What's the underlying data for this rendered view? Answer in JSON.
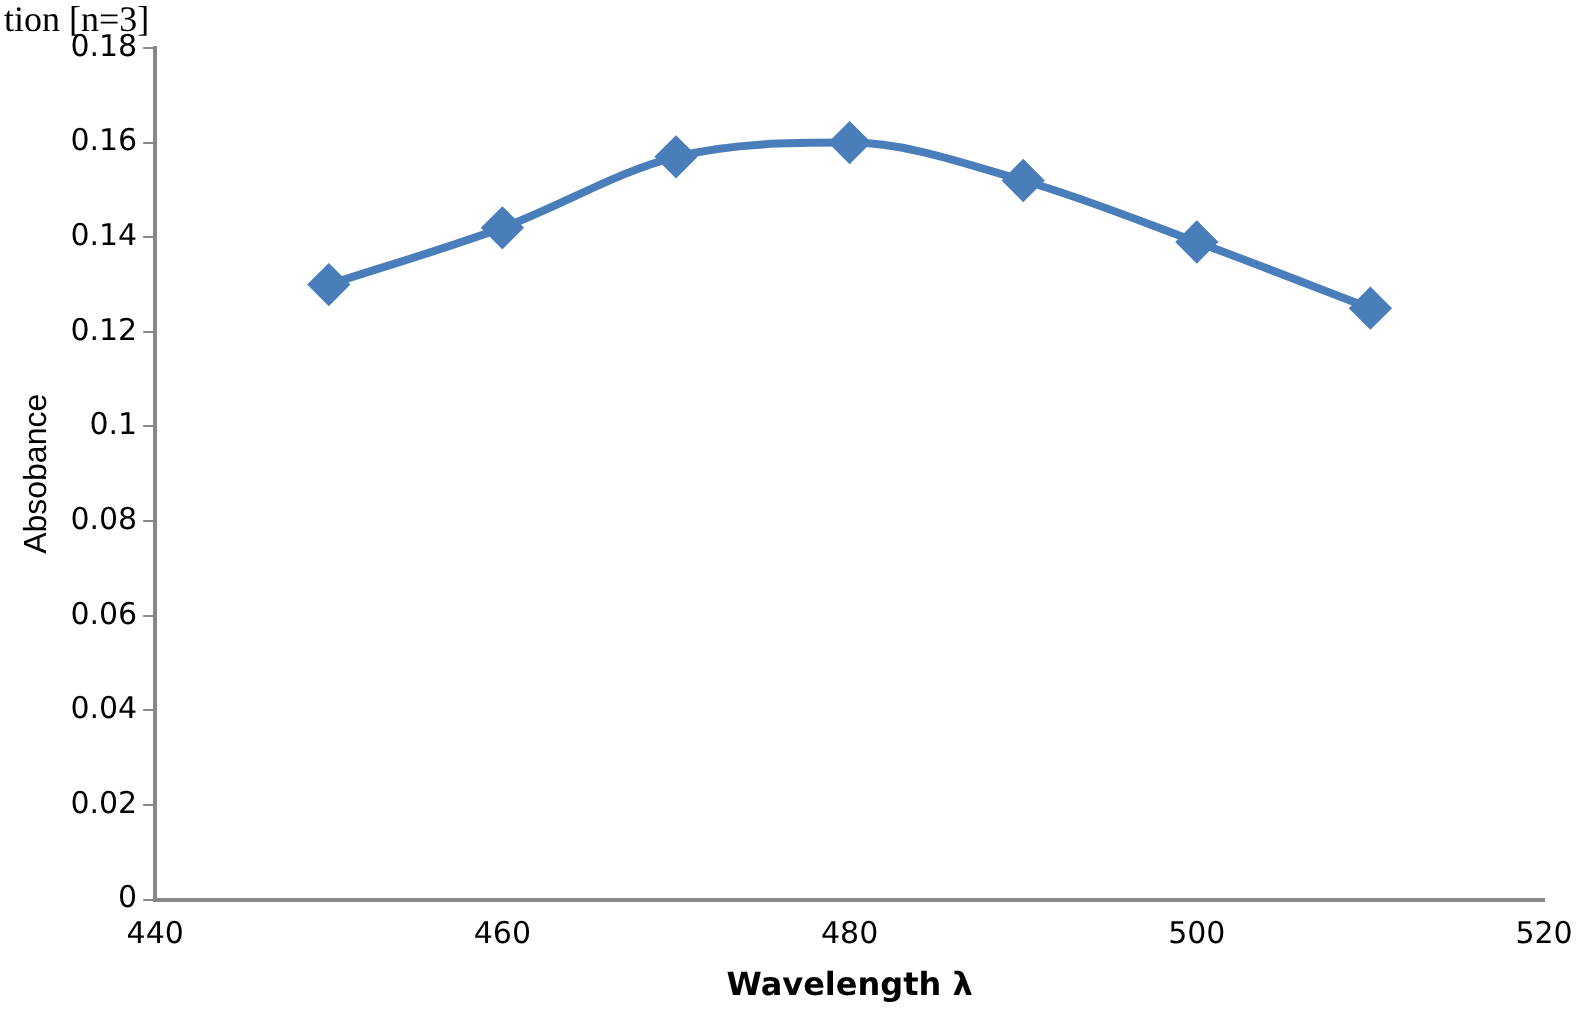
{
  "chart_data": {
    "type": "line",
    "annotations": [
      "tion [n=3]"
    ],
    "xlabel": "Wavelength λ",
    "ylabel": "Absobance",
    "x": [
      450,
      460,
      470,
      480,
      490,
      500,
      510
    ],
    "series": [
      {
        "color": "#4a7ebb",
        "values": [
          0.13,
          0.142,
          0.157,
          0.16,
          0.152,
          0.139,
          0.125
        ]
      }
    ],
    "xlim": [
      440,
      520
    ],
    "xticks": [
      440,
      460,
      480,
      500,
      520
    ],
    "ylim": [
      0,
      0.18
    ],
    "yticks": [
      0,
      0.02,
      0.04,
      0.06,
      0.08,
      0.1,
      0.12,
      0.14,
      0.16,
      0.18
    ],
    "marker": "diamond",
    "line_style": "solid",
    "grid": false,
    "legend": false
  }
}
